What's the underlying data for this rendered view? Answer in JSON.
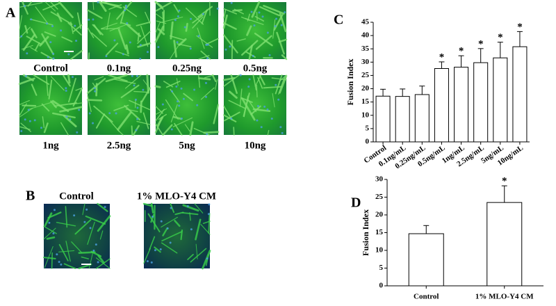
{
  "panels": {
    "A": {
      "label": "A",
      "images": [
        "Control",
        "0.1ng",
        "0.25ng",
        "0.5ng",
        "1ng",
        "2.5ng",
        "5ng",
        "10ng"
      ]
    },
    "B": {
      "label": "B",
      "images": [
        "Control",
        "1% MLO-Y4 CM"
      ]
    }
  },
  "chart_data": [
    {
      "type": "bar",
      "panel_label": "C",
      "y_label": "Fusion Index",
      "categories": [
        "Control",
        "0.1ng/mL",
        "0.25ng/mL",
        "0.5ng/mL",
        "1ng/mL",
        "2.5ng/mL",
        "5ng/mL",
        "10ng/mL"
      ],
      "values": [
        17.2,
        17.1,
        17.8,
        27.6,
        28.1,
        29.8,
        31.6,
        35.8
      ],
      "errors": [
        2.6,
        2.8,
        3.2,
        2.5,
        4.3,
        5.3,
        5.9,
        5.7
      ],
      "value_annotations": [
        null,
        null,
        null,
        "*",
        "*",
        "*",
        "*",
        "*"
      ],
      "color": "#ffffff",
      "ylim": [
        0,
        45
      ],
      "yticks": [
        0,
        5,
        10,
        15,
        20,
        25,
        30,
        35,
        40,
        45
      ]
    },
    {
      "type": "bar",
      "panel_label": "D",
      "y_label": "Fusion Index",
      "categories": [
        "Control",
        "1% MLO-Y4 CM"
      ],
      "values": [
        14.7,
        23.5
      ],
      "errors": [
        2.3,
        4.7
      ],
      "value_annotations": [
        null,
        "*"
      ],
      "color": "#ffffff",
      "ylim": [
        0,
        30
      ],
      "yticks": [
        0,
        5,
        10,
        15,
        20,
        25,
        30
      ]
    }
  ]
}
